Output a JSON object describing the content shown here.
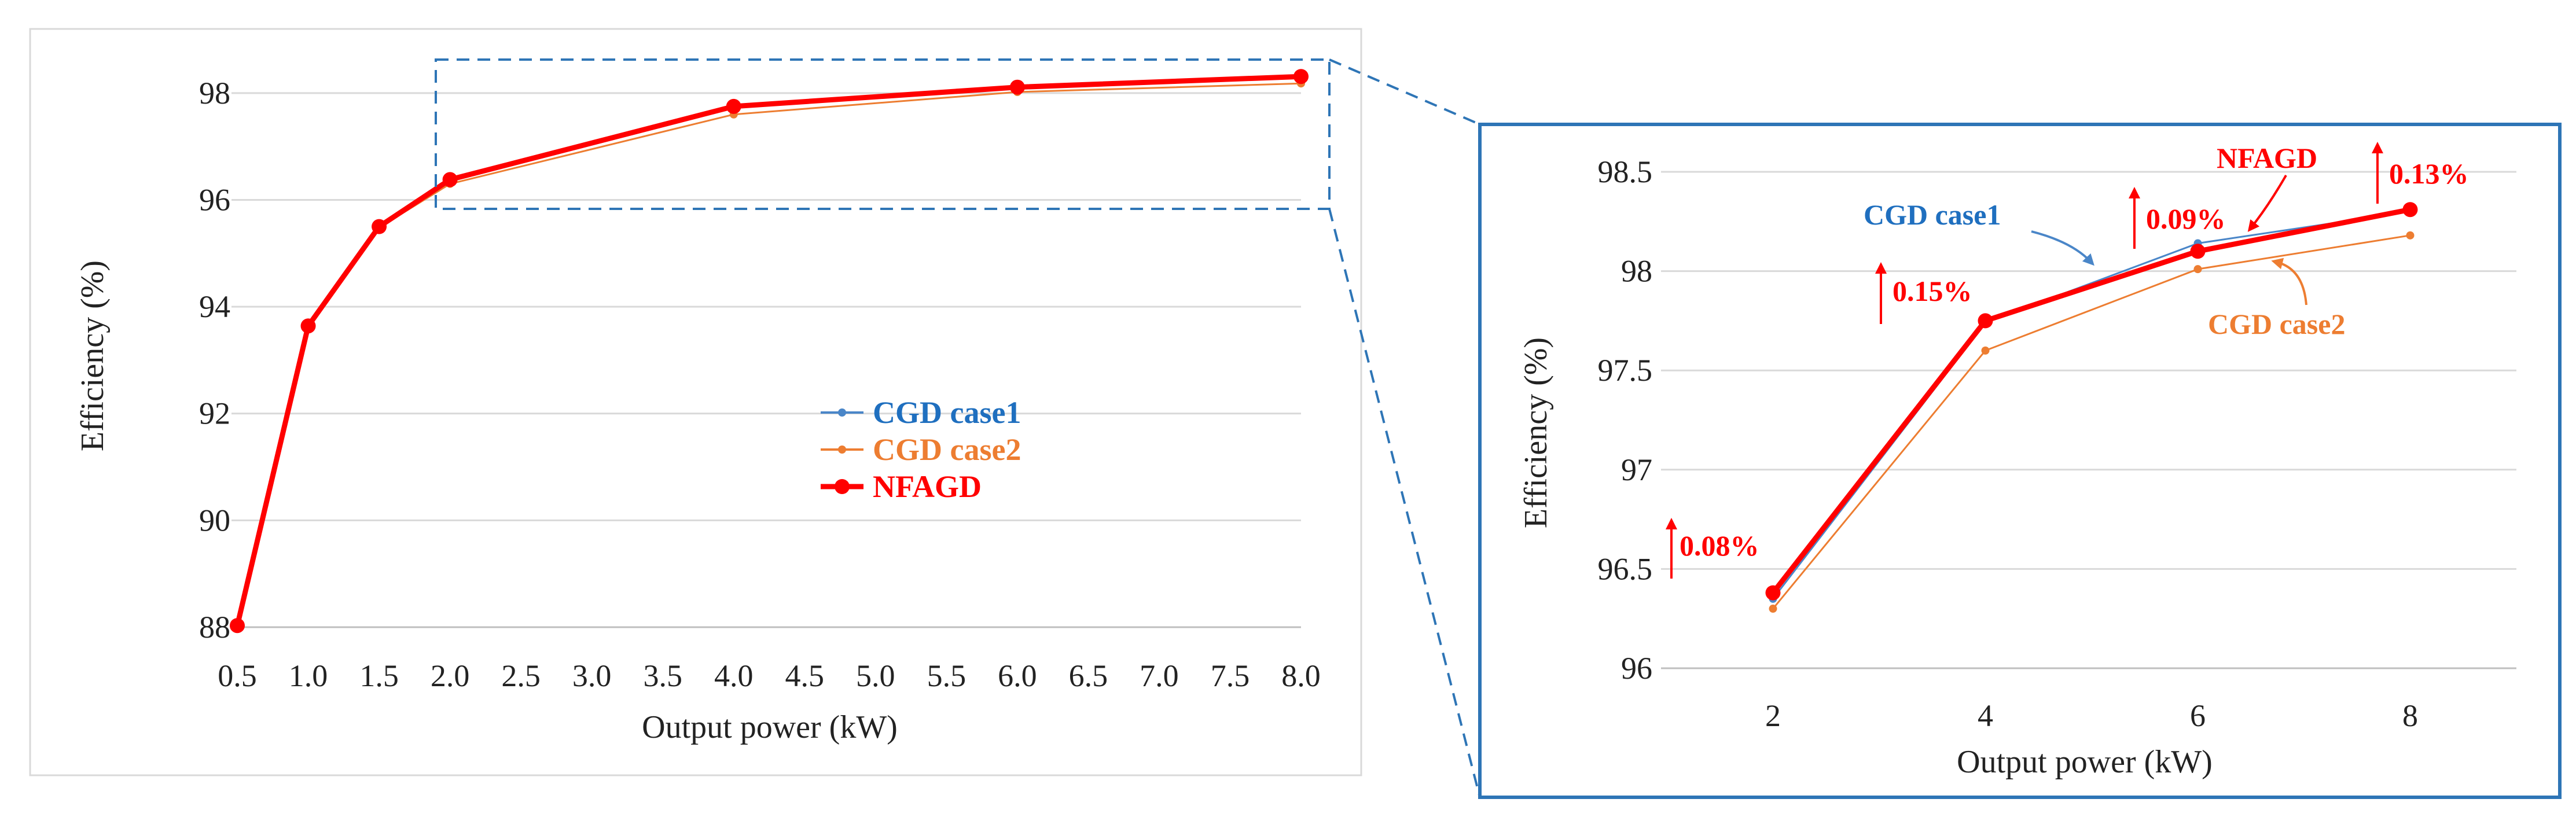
{
  "colors": {
    "case1": "#4a86c8",
    "case1_label": "#1f6fbf",
    "case2": "#ed7d31",
    "nfagd": "#ff0000",
    "grid": "#d9d9d9",
    "box": "#2e75b6",
    "axis": "#bfbfbf"
  },
  "chart_data": [
    {
      "id": "main",
      "type": "line",
      "title": "",
      "xlabel": "Output power (kW)",
      "ylabel": "Efficiency (%)",
      "x_ticks": [
        "0.5",
        "1.0",
        "1.5",
        "2.0",
        "2.5",
        "3.0",
        "3.5",
        "4.0",
        "4.5",
        "5.0",
        "5.5",
        "6.0",
        "6.5",
        "7.0",
        "7.5",
        "8.0"
      ],
      "y_ticks": [
        "88",
        "90",
        "92",
        "94",
        "96",
        "98"
      ],
      "xlim": [
        0.5,
        8.0
      ],
      "ylim": [
        88,
        98.8
      ],
      "grid": true,
      "legend_position": "center-right",
      "series": [
        {
          "name": "CGD case1",
          "x": [
            0.5,
            1.0,
            1.5,
            2.0,
            4.0,
            6.0,
            8.0
          ],
          "y": [
            88.02,
            93.64,
            95.5,
            96.35,
            97.74,
            98.13,
            98.3
          ]
        },
        {
          "name": "CGD case2",
          "x": [
            0.5,
            1.0,
            1.5,
            2.0,
            4.0,
            6.0,
            8.0
          ],
          "y": [
            88.02,
            93.62,
            95.48,
            96.3,
            97.6,
            98.02,
            98.18
          ]
        },
        {
          "name": "NFAGD",
          "x": [
            0.5,
            1.0,
            1.5,
            2.0,
            4.0,
            6.0,
            8.0
          ],
          "y": [
            88.03,
            93.64,
            95.5,
            96.38,
            97.75,
            98.11,
            98.31
          ]
        }
      ]
    },
    {
      "id": "zoom",
      "type": "line",
      "title": "",
      "xlabel": "Output power (kW)",
      "ylabel": "Efficiency (%)",
      "x_ticks": [
        "2",
        "4",
        "6",
        "8"
      ],
      "y_ticks": [
        "96",
        "96.5",
        "97",
        "97.5",
        "98",
        "98.5"
      ],
      "xlim": [
        1,
        9
      ],
      "ylim": [
        96,
        98.5
      ],
      "grid": true,
      "series": [
        {
          "name": "CGD case1",
          "x": [
            2,
            4,
            6,
            8
          ],
          "y": [
            96.35,
            97.74,
            98.14,
            98.3
          ]
        },
        {
          "name": "CGD case2",
          "x": [
            2,
            4,
            6,
            8
          ],
          "y": [
            96.3,
            97.6,
            98.01,
            98.18
          ]
        },
        {
          "name": "NFAGD",
          "x": [
            2,
            4,
            6,
            8
          ],
          "y": [
            96.38,
            97.75,
            98.1,
            98.31
          ]
        }
      ],
      "series_labels": {
        "case1": "CGD case1",
        "case2": "CGD case2",
        "nfagd": "NFAGD"
      },
      "annotations": [
        {
          "x": 2,
          "text": "0.08%"
        },
        {
          "x": 4,
          "text": "0.15%"
        },
        {
          "x": 6,
          "text": "0.09%"
        },
        {
          "x": 8,
          "text": "0.13%"
        }
      ]
    }
  ]
}
